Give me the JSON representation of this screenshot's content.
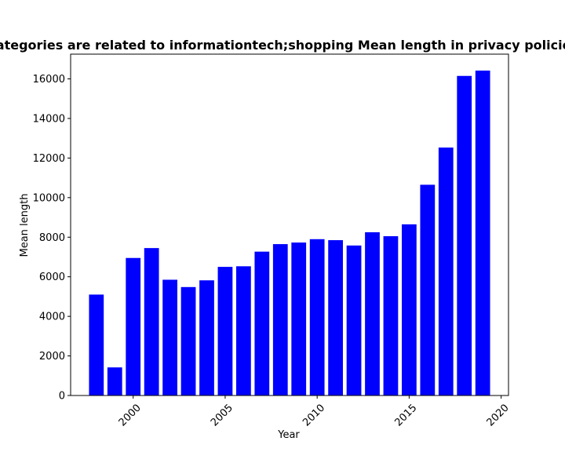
{
  "chart_data": {
    "type": "bar",
    "title": "Categories are related to informationtech;shopping Mean length in privacy policies",
    "xlabel": "Year",
    "ylabel": "Mean length",
    "x": [
      1998,
      1999,
      2000,
      2001,
      2002,
      2003,
      2004,
      2005,
      2006,
      2007,
      2008,
      2009,
      2010,
      2011,
      2012,
      2013,
      2014,
      2015,
      2016,
      2017,
      2018,
      2019
    ],
    "values": [
      5100,
      1420,
      6950,
      7450,
      5850,
      5480,
      5820,
      6500,
      6530,
      7270,
      7650,
      7730,
      7900,
      7850,
      7580,
      8250,
      8050,
      8650,
      10650,
      12530,
      16150,
      16420
    ],
    "xlim": [
      1996.6,
      2020.4
    ],
    "ylim": [
      0,
      17250
    ],
    "x_ticks": [
      2000,
      2005,
      2010,
      2015,
      2020
    ],
    "y_ticks": [
      0,
      2000,
      4000,
      6000,
      8000,
      10000,
      12000,
      14000,
      16000
    ],
    "bar_color": "#0000ff",
    "grid": false,
    "legend": "none"
  }
}
